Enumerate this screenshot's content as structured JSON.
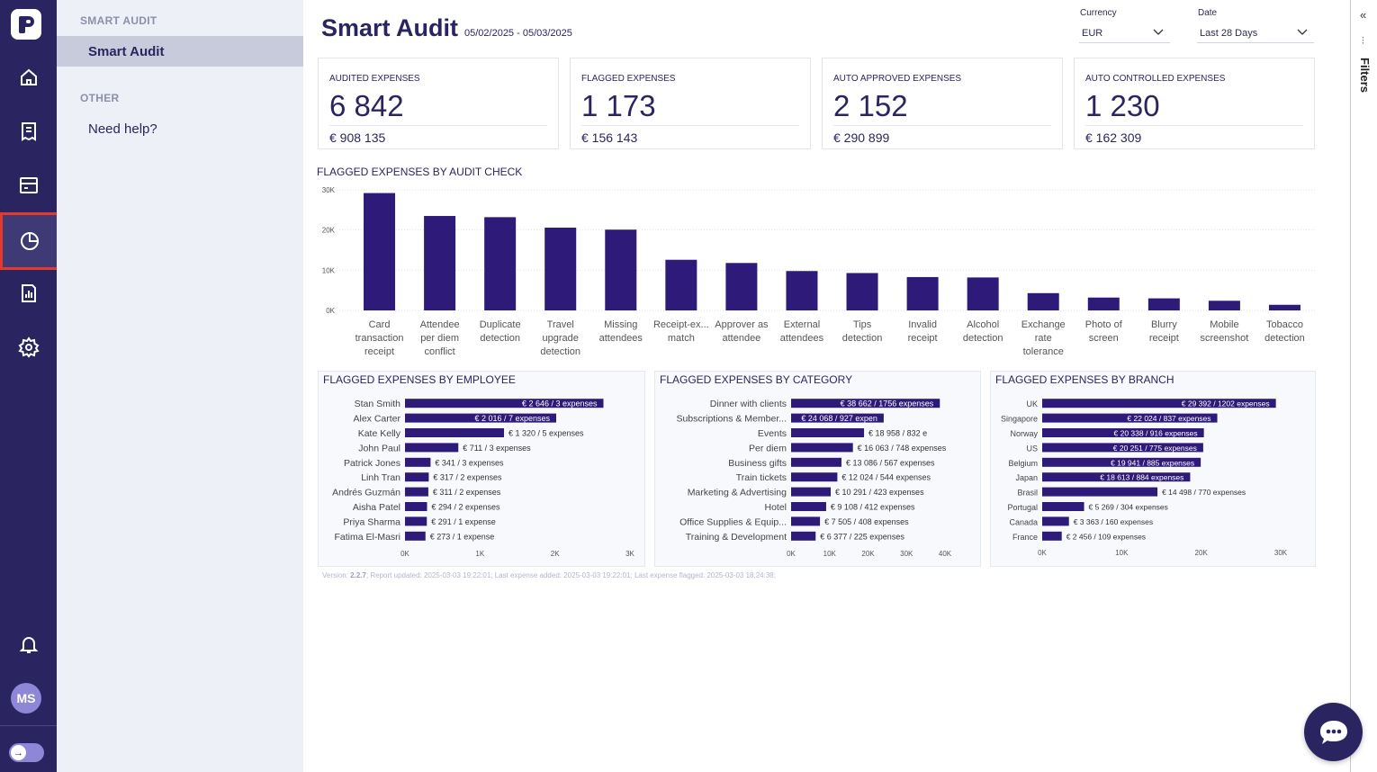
{
  "sidenav": {
    "section1": "SMART AUDIT",
    "item1": "Smart Audit",
    "section2": "OTHER",
    "item2": "Need help?"
  },
  "rail": {
    "icons": [
      "home-icon",
      "receipt-icon",
      "card-icon",
      "analytics-icon",
      "report-icon",
      "settings-icon",
      "bell-icon"
    ],
    "avatar": "MS"
  },
  "header": {
    "title": "Smart Audit",
    "date_range": "05/02/2025 - 05/03/2025",
    "currency_label": "Currency",
    "currency_value": "EUR",
    "date_label": "Date",
    "date_value": "Last 28 Days"
  },
  "kpis": [
    {
      "label": "AUDITED EXPENSES",
      "value": "6 842",
      "sub": "€ 908 135"
    },
    {
      "label": "FLAGGED EXPENSES",
      "value": "1 173",
      "sub": "€ 156 143"
    },
    {
      "label": "AUTO APPROVED EXPENSES",
      "value": "2 152",
      "sub": "€ 290 899"
    },
    {
      "label": "AUTO CONTROLLED EXPENSES",
      "value": "1 230",
      "sub": "€ 162 309"
    }
  ],
  "filters_strip": {
    "label": "Filters"
  },
  "footer": {
    "version_label": "Version: ",
    "version": "2.2.7",
    "rest": ";   Report updated: 2025-03-03 19:22:01;   Last expense added: 2025-03-03 19:22:01;   Last expense flagged: 2025-03-03 18:24:38;"
  },
  "colors": {
    "bar": "#2e1a78",
    "rail": "#2a2560",
    "accent_red": "#e23b2e"
  },
  "chart_data": [
    {
      "type": "bar",
      "title": "FLAGGED EXPENSES BY AUDIT CHECK",
      "categories": [
        [
          "Card",
          "transaction",
          "receipt"
        ],
        [
          "Attendee",
          "per diem",
          "conflict"
        ],
        [
          "Duplicate",
          "detection"
        ],
        [
          "Travel",
          "upgrade",
          "detection"
        ],
        [
          "Missing",
          "attendees"
        ],
        [
          "Receipt-ex...",
          "match"
        ],
        [
          "Approver as",
          "attendee"
        ],
        [
          "External",
          "attendees"
        ],
        [
          "Tips",
          "detection"
        ],
        [
          "Invalid",
          "receipt"
        ],
        [
          "Alcohol",
          "detection"
        ],
        [
          "Exchange",
          "rate",
          "tolerance"
        ],
        [
          "Photo of",
          "screen"
        ],
        [
          "Blurry",
          "receipt"
        ],
        [
          "Mobile",
          "screenshot"
        ],
        [
          "Tobacco",
          "detection"
        ]
      ],
      "values": [
        29200,
        23500,
        23200,
        20600,
        20100,
        12600,
        11800,
        9800,
        9300,
        8300,
        8200,
        4300,
        3200,
        3000,
        2400,
        1400
      ],
      "ylim": [
        0,
        30000
      ],
      "yticks": [
        "0K",
        "10K",
        "20K",
        "30K"
      ],
      "grid": true
    },
    {
      "type": "bar",
      "orientation": "horizontal",
      "title": "FLAGGED EXPENSES BY EMPLOYEE",
      "categories": [
        "Stan Smith",
        "Alex Carter",
        "Kate Kelly",
        "John Paul",
        "Patrick Jones",
        "Linh Tran",
        "Andrés Guzmán",
        "Aisha Patel",
        "Priya Sharma",
        "Fatima El-Masri"
      ],
      "values": [
        2646,
        2016,
        1320,
        711,
        341,
        317,
        311,
        294,
        291,
        273
      ],
      "labels": [
        "€ 2 646 / 3 expenses",
        "€ 2 016 / 7 expenses",
        "€ 1 320 / 5 expenses",
        "€ 711 / 3 expenses",
        "€ 341 / 3 expenses",
        "€ 317 / 2 expenses",
        "€ 311 / 2 expenses",
        "€ 294 / 2 expenses",
        "€ 291 / 1 expense",
        "€ 273 / 1 expense"
      ],
      "xlim": [
        0,
        3000
      ],
      "xticks": [
        "0K",
        "1K",
        "2K",
        "3K"
      ]
    },
    {
      "type": "bar",
      "orientation": "horizontal",
      "title": "FLAGGED EXPENSES BY CATEGORY",
      "categories": [
        "Dinner with clients",
        "Subscriptions & Member...",
        "Events",
        "Per diem",
        "Business gifts",
        "Train tickets",
        "Marketing & Advertising",
        "Hotel",
        "Office Supplies & Equip...",
        "Training & Development"
      ],
      "values": [
        38662,
        24068,
        18958,
        16063,
        13086,
        12024,
        10291,
        9108,
        7505,
        6377
      ],
      "labels": [
        "€ 38 662 / 1756 expenses",
        "€ 24 068 / 927 expen",
        "€ 18 958 / 832 e",
        "€ 16 063 / 748 expenses",
        "€ 13 086 / 567 expenses",
        "€ 12 024 / 544 expenses",
        "€ 10 291 / 423 expenses",
        "€ 9 108 / 412 expenses",
        "€ 7 505 / 408 expenses",
        "€ 6 377 / 225 expenses"
      ],
      "xlim": [
        0,
        40000
      ],
      "xticks": [
        "0K",
        "10K",
        "20K",
        "30K",
        "40K"
      ]
    },
    {
      "type": "bar",
      "orientation": "horizontal",
      "title": "FLAGGED EXPENSES BY BRANCH",
      "categories": [
        "UK",
        "Singapore",
        "Norway",
        "US",
        "Belgium",
        "Japan",
        "Brasil",
        "Portugal",
        "Canada",
        "France"
      ],
      "values": [
        29392,
        22024,
        20338,
        20251,
        19941,
        18613,
        14498,
        5269,
        3363,
        2456
      ],
      "labels": [
        "€ 29 392 / 1202 expenses",
        "€ 22 024 / 837 expenses",
        "€ 20 338 / 916 expenses",
        "€ 20 251 / 775 expenses",
        "€ 19 941 / 885 expenses",
        "€ 18 613 / 884 expenses",
        "€ 14 498 / 770 expenses",
        "€ 5 269 / 304 expenses",
        "€ 3 363 / 160 expenses",
        "€ 2 456 / 109 expenses"
      ],
      "xlim": [
        0,
        30000
      ],
      "xticks": [
        "0K",
        "10K",
        "20K",
        "30K"
      ]
    }
  ]
}
